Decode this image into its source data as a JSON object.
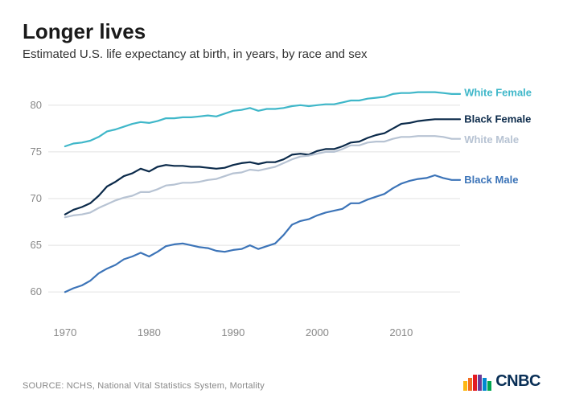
{
  "title": "Longer lives",
  "subtitle": "Estimated U.S. life expectancy at birth, in years, by race and sex",
  "source": "SOURCE: NCHS, National Vital Statistics System, Mortality",
  "logo_text": "CNBC",
  "chart": {
    "type": "line",
    "xlim": [
      1968,
      2017
    ],
    "ylim": [
      57,
      83
    ],
    "x_ticks": [
      1970,
      1980,
      1990,
      2000,
      2010
    ],
    "y_ticks": [
      60,
      65,
      70,
      75,
      80
    ],
    "background_color": "#ffffff",
    "grid_color": "#e2e2e2",
    "axis_label_color": "#888888",
    "axis_label_fontsize": 13,
    "line_width": 2.2,
    "series_label_fontsize": 13,
    "series_label_weight": 700,
    "series": [
      {
        "name": "White Female",
        "color": "#3fb7c9",
        "label_x": 2017.5,
        "label_y": 81.3,
        "data": [
          [
            1970,
            75.6
          ],
          [
            1971,
            75.9
          ],
          [
            1972,
            76.0
          ],
          [
            1973,
            76.2
          ],
          [
            1974,
            76.6
          ],
          [
            1975,
            77.2
          ],
          [
            1976,
            77.4
          ],
          [
            1977,
            77.7
          ],
          [
            1978,
            78.0
          ],
          [
            1979,
            78.2
          ],
          [
            1980,
            78.1
          ],
          [
            1981,
            78.3
          ],
          [
            1982,
            78.6
          ],
          [
            1983,
            78.6
          ],
          [
            1984,
            78.7
          ],
          [
            1985,
            78.7
          ],
          [
            1986,
            78.8
          ],
          [
            1987,
            78.9
          ],
          [
            1988,
            78.8
          ],
          [
            1989,
            79.1
          ],
          [
            1990,
            79.4
          ],
          [
            1991,
            79.5
          ],
          [
            1992,
            79.7
          ],
          [
            1993,
            79.4
          ],
          [
            1994,
            79.6
          ],
          [
            1995,
            79.6
          ],
          [
            1996,
            79.7
          ],
          [
            1997,
            79.9
          ],
          [
            1998,
            80.0
          ],
          [
            1999,
            79.9
          ],
          [
            2000,
            80.0
          ],
          [
            2001,
            80.1
          ],
          [
            2002,
            80.1
          ],
          [
            2003,
            80.3
          ],
          [
            2004,
            80.5
          ],
          [
            2005,
            80.5
          ],
          [
            2006,
            80.7
          ],
          [
            2007,
            80.8
          ],
          [
            2008,
            80.9
          ],
          [
            2009,
            81.2
          ],
          [
            2010,
            81.3
          ],
          [
            2011,
            81.3
          ],
          [
            2012,
            81.4
          ],
          [
            2013,
            81.4
          ],
          [
            2014,
            81.4
          ],
          [
            2015,
            81.3
          ],
          [
            2016,
            81.2
          ],
          [
            2017,
            81.2
          ]
        ]
      },
      {
        "name": "Black Female",
        "color": "#0b2a4a",
        "label_x": 2017.5,
        "label_y": 78.5,
        "data": [
          [
            1970,
            68.3
          ],
          [
            1971,
            68.8
          ],
          [
            1972,
            69.1
          ],
          [
            1973,
            69.5
          ],
          [
            1974,
            70.3
          ],
          [
            1975,
            71.3
          ],
          [
            1976,
            71.8
          ],
          [
            1977,
            72.4
          ],
          [
            1978,
            72.7
          ],
          [
            1979,
            73.2
          ],
          [
            1980,
            72.9
          ],
          [
            1981,
            73.4
          ],
          [
            1982,
            73.6
          ],
          [
            1983,
            73.5
          ],
          [
            1984,
            73.5
          ],
          [
            1985,
            73.4
          ],
          [
            1986,
            73.4
          ],
          [
            1987,
            73.3
          ],
          [
            1988,
            73.2
          ],
          [
            1989,
            73.3
          ],
          [
            1990,
            73.6
          ],
          [
            1991,
            73.8
          ],
          [
            1992,
            73.9
          ],
          [
            1993,
            73.7
          ],
          [
            1994,
            73.9
          ],
          [
            1995,
            73.9
          ],
          [
            1996,
            74.2
          ],
          [
            1997,
            74.7
          ],
          [
            1998,
            74.8
          ],
          [
            1999,
            74.7
          ],
          [
            2000,
            75.1
          ],
          [
            2001,
            75.3
          ],
          [
            2002,
            75.3
          ],
          [
            2003,
            75.6
          ],
          [
            2004,
            76.0
          ],
          [
            2005,
            76.1
          ],
          [
            2006,
            76.5
          ],
          [
            2007,
            76.8
          ],
          [
            2008,
            77.0
          ],
          [
            2009,
            77.5
          ],
          [
            2010,
            78.0
          ],
          [
            2011,
            78.1
          ],
          [
            2012,
            78.3
          ],
          [
            2013,
            78.4
          ],
          [
            2014,
            78.5
          ],
          [
            2015,
            78.5
          ],
          [
            2016,
            78.5
          ],
          [
            2017,
            78.5
          ]
        ]
      },
      {
        "name": "White Male",
        "color": "#b7c3d3",
        "label_x": 2017.5,
        "label_y": 76.3,
        "data": [
          [
            1970,
            68.0
          ],
          [
            1971,
            68.2
          ],
          [
            1972,
            68.3
          ],
          [
            1973,
            68.5
          ],
          [
            1974,
            69.0
          ],
          [
            1975,
            69.4
          ],
          [
            1976,
            69.8
          ],
          [
            1977,
            70.1
          ],
          [
            1978,
            70.3
          ],
          [
            1979,
            70.7
          ],
          [
            1980,
            70.7
          ],
          [
            1981,
            71.0
          ],
          [
            1982,
            71.4
          ],
          [
            1983,
            71.5
          ],
          [
            1984,
            71.7
          ],
          [
            1985,
            71.7
          ],
          [
            1986,
            71.8
          ],
          [
            1987,
            72.0
          ],
          [
            1988,
            72.1
          ],
          [
            1989,
            72.4
          ],
          [
            1990,
            72.7
          ],
          [
            1991,
            72.8
          ],
          [
            1992,
            73.1
          ],
          [
            1993,
            73.0
          ],
          [
            1994,
            73.2
          ],
          [
            1995,
            73.4
          ],
          [
            1996,
            73.8
          ],
          [
            1997,
            74.2
          ],
          [
            1998,
            74.5
          ],
          [
            1999,
            74.6
          ],
          [
            2000,
            74.8
          ],
          [
            2001,
            75.0
          ],
          [
            2002,
            75.0
          ],
          [
            2003,
            75.3
          ],
          [
            2004,
            75.7
          ],
          [
            2005,
            75.7
          ],
          [
            2006,
            76.0
          ],
          [
            2007,
            76.1
          ],
          [
            2008,
            76.1
          ],
          [
            2009,
            76.4
          ],
          [
            2010,
            76.6
          ],
          [
            2011,
            76.6
          ],
          [
            2012,
            76.7
          ],
          [
            2013,
            76.7
          ],
          [
            2014,
            76.7
          ],
          [
            2015,
            76.6
          ],
          [
            2016,
            76.4
          ],
          [
            2017,
            76.4
          ]
        ]
      },
      {
        "name": "Black Male",
        "color": "#3c74b8",
        "label_x": 2017.5,
        "label_y": 72.0,
        "data": [
          [
            1970,
            60.0
          ],
          [
            1971,
            60.4
          ],
          [
            1972,
            60.7
          ],
          [
            1973,
            61.2
          ],
          [
            1974,
            62.0
          ],
          [
            1975,
            62.5
          ],
          [
            1976,
            62.9
          ],
          [
            1977,
            63.5
          ],
          [
            1978,
            63.8
          ],
          [
            1979,
            64.2
          ],
          [
            1980,
            63.8
          ],
          [
            1981,
            64.3
          ],
          [
            1982,
            64.9
          ],
          [
            1983,
            65.1
          ],
          [
            1984,
            65.2
          ],
          [
            1985,
            65.0
          ],
          [
            1986,
            64.8
          ],
          [
            1987,
            64.7
          ],
          [
            1988,
            64.4
          ],
          [
            1989,
            64.3
          ],
          [
            1990,
            64.5
          ],
          [
            1991,
            64.6
          ],
          [
            1992,
            65.0
          ],
          [
            1993,
            64.6
          ],
          [
            1994,
            64.9
          ],
          [
            1995,
            65.2
          ],
          [
            1996,
            66.1
          ],
          [
            1997,
            67.2
          ],
          [
            1998,
            67.6
          ],
          [
            1999,
            67.8
          ],
          [
            2000,
            68.2
          ],
          [
            2001,
            68.5
          ],
          [
            2002,
            68.7
          ],
          [
            2003,
            68.9
          ],
          [
            2004,
            69.5
          ],
          [
            2005,
            69.5
          ],
          [
            2006,
            69.9
          ],
          [
            2007,
            70.2
          ],
          [
            2008,
            70.5
          ],
          [
            2009,
            71.1
          ],
          [
            2010,
            71.6
          ],
          [
            2011,
            71.9
          ],
          [
            2012,
            72.1
          ],
          [
            2013,
            72.2
          ],
          [
            2014,
            72.5
          ],
          [
            2015,
            72.2
          ],
          [
            2016,
            72.0
          ],
          [
            2017,
            72.0
          ]
        ]
      }
    ]
  },
  "logo": {
    "peacock_colors": [
      "#fdb813",
      "#f37021",
      "#e31b23",
      "#6d3c97",
      "#0089d0",
      "#00a651"
    ],
    "text_color": "#092f56"
  }
}
